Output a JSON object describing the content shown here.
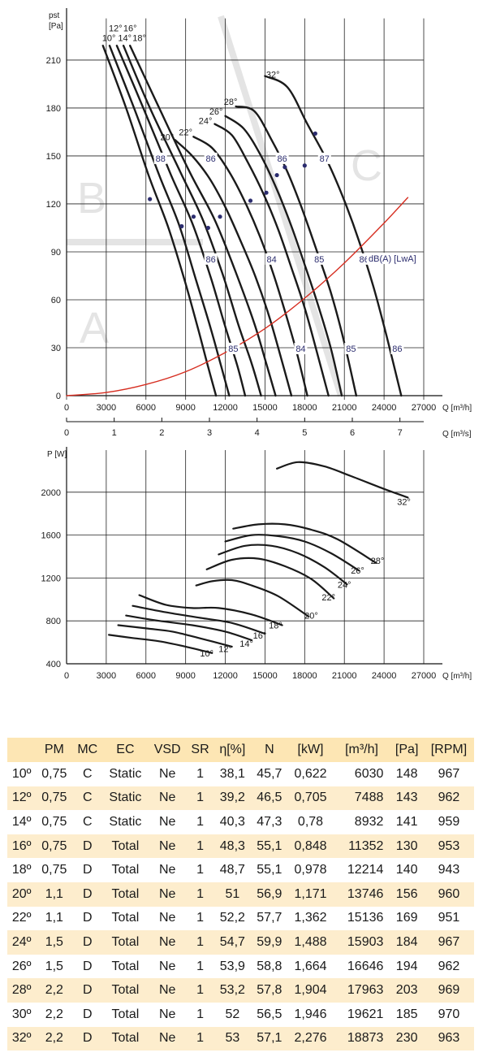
{
  "chart_data": [
    {
      "type": "line",
      "title": "",
      "ylabel": "pst [Pa]",
      "y_unit_top": "pst",
      "y_unit_bottom": "[Pa]",
      "xlabel": "Q [m³/h]",
      "xlabel2": "Q [m³/s]",
      "xlim": [
        0,
        27000
      ],
      "ylim": [
        0,
        230
      ],
      "x_ticks": [
        0,
        3000,
        6000,
        9000,
        12000,
        15000,
        18000,
        21000,
        24000,
        27000
      ],
      "y_ticks": [
        0,
        30,
        60,
        90,
        120,
        150,
        180,
        210
      ],
      "x2_ticks": [
        0,
        1,
        2,
        3,
        4,
        5,
        6,
        7
      ],
      "grid": true,
      "zones": [
        "A",
        "B",
        "C"
      ],
      "series": [
        {
          "name": "10°",
          "x": [
            2750,
            4500,
            6200,
            7700,
            9000,
            10000,
            10700,
            11300
          ],
          "y": [
            219,
            180,
            138,
            105,
            70,
            40,
            18,
            0
          ]
        },
        {
          "name": "12°",
          "x": [
            3250,
            5100,
            7000,
            8500,
            9800,
            10900,
            11700,
            12300
          ],
          "y": [
            219,
            180,
            138,
            107,
            72,
            42,
            18,
            0
          ]
        },
        {
          "name": "14°",
          "x": [
            3800,
            5800,
            7900,
            9500,
            10900,
            12000,
            12900,
            13500
          ],
          "y": [
            219,
            180,
            138,
            108,
            74,
            43,
            19,
            0
          ]
        },
        {
          "name": "16°",
          "x": [
            4300,
            6300,
            8600,
            10300,
            11800,
            13000,
            14000,
            14700
          ],
          "y": [
            219,
            180,
            140,
            110,
            76,
            44,
            20,
            0
          ]
        },
        {
          "name": "18°",
          "x": [
            4800,
            7000,
            9300,
            11200,
            12800,
            14200,
            15100,
            15800
          ],
          "y": [
            219,
            180,
            140,
            110,
            77,
            45,
            20,
            0
          ]
        },
        {
          "name": "20°",
          "x": [
            8200,
            9500,
            10800,
            12000,
            13200,
            14300,
            15300,
            16200,
            17000
          ],
          "y": [
            160,
            150,
            136,
            118,
            96,
            74,
            50,
            24,
            0
          ]
        },
        {
          "name": "22°",
          "x": [
            9600,
            11000,
            12300,
            13500,
            14600,
            15600,
            16500,
            17400,
            18200
          ],
          "y": [
            162,
            155,
            140,
            121,
            100,
            77,
            53,
            27,
            0
          ]
        },
        {
          "name": "24°",
          "x": [
            11200,
            12500,
            13700,
            14900,
            16000,
            17000,
            18000,
            18900,
            19800
          ],
          "y": [
            170,
            163,
            146,
            126,
            104,
            80,
            55,
            28,
            0
          ]
        },
        {
          "name": "26°",
          "x": [
            12000,
            13400,
            14700,
            15900,
            17000,
            18000,
            19000,
            20000,
            20800
          ],
          "y": [
            175,
            167,
            150,
            129,
            106,
            82,
            57,
            29,
            0
          ]
        },
        {
          "name": "28°",
          "x": [
            12800,
            14200,
            15500,
            16700,
            17800,
            18900,
            20000,
            21000,
            21900
          ],
          "y": [
            181,
            178,
            160,
            140,
            117,
            91,
            64,
            33,
            0
          ]
        },
        {
          "name": "32°",
          "x": [
            15000,
            16700,
            18200,
            19700,
            21000,
            22100,
            23200,
            24200,
            25300
          ],
          "y": [
            200,
            193,
            170,
            147,
            122,
            97,
            68,
            37,
            0
          ]
        },
        {
          "name": "system",
          "color": "#d62d20",
          "x": [
            0,
            3000,
            6000,
            9000,
            12000,
            15000,
            18000,
            21000,
            24000,
            25800
          ],
          "y": [
            0,
            2,
            7,
            15,
            27,
            42,
            61,
            83,
            108,
            124
          ]
        }
      ],
      "markers_x": [
        6300,
        8700,
        9600,
        10700,
        11600,
        13900,
        15100,
        15900,
        16500,
        18000,
        18800
      ],
      "markers_y": [
        123,
        106,
        112,
        105,
        112,
        122,
        127,
        138,
        143,
        144,
        164
      ],
      "dB_labels": [
        {
          "text": "88",
          "x": 7100,
          "y": 148
        },
        {
          "text": "86",
          "x": 10900,
          "y": 148
        },
        {
          "text": "86",
          "x": 16300,
          "y": 148
        },
        {
          "text": "87",
          "x": 19500,
          "y": 148
        },
        {
          "text": "86",
          "x": 10900,
          "y": 85
        },
        {
          "text": "84",
          "x": 15500,
          "y": 85
        },
        {
          "text": "85",
          "x": 19100,
          "y": 85
        },
        {
          "text": "86",
          "x": 22500,
          "y": 85
        },
        {
          "text": "85",
          "x": 12600,
          "y": 29
        },
        {
          "text": "84",
          "x": 17700,
          "y": 29
        },
        {
          "text": "85",
          "x": 21500,
          "y": 29
        },
        {
          "text": "86",
          "x": 25000,
          "y": 29
        }
      ],
      "unit_note": "dB(A) [LwA]",
      "curve_labels": [
        {
          "text": "10°",
          "x": 3200,
          "y": 222
        },
        {
          "text": "12°",
          "x": 3700,
          "y": 228
        },
        {
          "text": "14°",
          "x": 4400,
          "y": 222
        },
        {
          "text": "16°",
          "x": 4800,
          "y": 228
        },
        {
          "text": "18°",
          "x": 5500,
          "y": 222
        },
        {
          "text": "20°",
          "x": 7600,
          "y": 160
        },
        {
          "text": "22°",
          "x": 9000,
          "y": 163
        },
        {
          "text": "24°",
          "x": 10500,
          "y": 170
        },
        {
          "text": "26°",
          "x": 11300,
          "y": 176
        },
        {
          "text": "28°",
          "x": 12400,
          "y": 182
        },
        {
          "text": "32°",
          "x": 15600,
          "y": 199
        }
      ]
    },
    {
      "type": "line",
      "title": "",
      "ylabel": "P [W]",
      "xlabel": "Q [m³/h]",
      "xlim": [
        0,
        27000
      ],
      "ylim": [
        400,
        2200
      ],
      "x_ticks": [
        0,
        3000,
        6000,
        9000,
        12000,
        15000,
        18000,
        21000,
        24000,
        27000
      ],
      "y_ticks": [
        400,
        800,
        1200,
        1600,
        2000
      ],
      "grid": true,
      "series": [
        {
          "name": "10°",
          "x": [
            3200,
            5000,
            7000,
            9000,
            11000
          ],
          "y": [
            670,
            640,
            610,
            560,
            500
          ]
        },
        {
          "name": "12°",
          "x": [
            3900,
            6000,
            8000,
            10000,
            12500
          ],
          "y": [
            760,
            730,
            700,
            640,
            560
          ]
        },
        {
          "name": "14°",
          "x": [
            4500,
            7000,
            9500,
            12000,
            14000
          ],
          "y": [
            850,
            800,
            760,
            700,
            620
          ]
        },
        {
          "name": "16°",
          "x": [
            5000,
            7500,
            10000,
            12500,
            15000
          ],
          "y": [
            940,
            880,
            830,
            780,
            680
          ]
        },
        {
          "name": "18°",
          "x": [
            5500,
            7500,
            9500,
            11500,
            14000,
            16300
          ],
          "y": [
            1040,
            950,
            920,
            920,
            860,
            760
          ]
        },
        {
          "name": "20°",
          "x": [
            9800,
            11000,
            12500,
            14000,
            16000,
            18300
          ],
          "y": [
            1130,
            1170,
            1180,
            1130,
            1030,
            840
          ]
        },
        {
          "name": "22°",
          "x": [
            10600,
            12500,
            14500,
            16500,
            18500,
            20200
          ],
          "y": [
            1280,
            1370,
            1380,
            1310,
            1190,
            1010
          ]
        },
        {
          "name": "24°",
          "x": [
            11500,
            13500,
            15500,
            17500,
            19500,
            21200
          ],
          "y": [
            1420,
            1500,
            1500,
            1430,
            1300,
            1140
          ]
        },
        {
          "name": "26°",
          "x": [
            12000,
            14000,
            16000,
            18000,
            20000,
            22100
          ],
          "y": [
            1540,
            1600,
            1590,
            1540,
            1430,
            1270
          ]
        },
        {
          "name": "28°",
          "x": [
            12600,
            14500,
            16500,
            18500,
            20500,
            23400
          ],
          "y": [
            1660,
            1700,
            1700,
            1650,
            1560,
            1340
          ]
        },
        {
          "name": "32°",
          "x": [
            15900,
            17500,
            19500,
            21500,
            24000,
            25800
          ],
          "y": [
            2220,
            2280,
            2240,
            2150,
            2030,
            1950
          ]
        }
      ],
      "curve_labels": [
        {
          "text": "10°",
          "x": 10600,
          "y": 470
        },
        {
          "text": "12°",
          "x": 12000,
          "y": 510
        },
        {
          "text": "14°",
          "x": 13600,
          "y": 560
        },
        {
          "text": "16°",
          "x": 14600,
          "y": 635
        },
        {
          "text": "18°",
          "x": 15800,
          "y": 730
        },
        {
          "text": "20°",
          "x": 18500,
          "y": 820
        },
        {
          "text": "22°",
          "x": 19800,
          "y": 990
        },
        {
          "text": "24°",
          "x": 21000,
          "y": 1110
        },
        {
          "text": "26°",
          "x": 22000,
          "y": 1240
        },
        {
          "text": "28°",
          "x": 23500,
          "y": 1330
        },
        {
          "text": "32°",
          "x": 25500,
          "y": 1880
        }
      ]
    },
    {
      "type": "table",
      "columns": [
        "",
        "PM",
        "MC",
        "EC",
        "VSD",
        "SR",
        "η[%]",
        "N",
        "[kW]",
        "[m³/h]",
        "[Pa]",
        "[RPM]"
      ],
      "rows": [
        [
          "10º",
          "0,75",
          "C",
          "Static",
          "Ne",
          "1",
          "38,1",
          "45,7",
          "0,622",
          "6030",
          "148",
          "967"
        ],
        [
          "12º",
          "0,75",
          "C",
          "Static",
          "Ne",
          "1",
          "39,2",
          "46,5",
          "0,705",
          "7488",
          "143",
          "962"
        ],
        [
          "14º",
          "0,75",
          "C",
          "Static",
          "Ne",
          "1",
          "40,3",
          "47,3",
          "0,78",
          "8932",
          "141",
          "959"
        ],
        [
          "16º",
          "0,75",
          "D",
          "Total",
          "Ne",
          "1",
          "48,3",
          "55,1",
          "0,848",
          "11352",
          "130",
          "953"
        ],
        [
          "18º",
          "0,75",
          "D",
          "Total",
          "Ne",
          "1",
          "48,7",
          "55,1",
          "0,978",
          "12214",
          "140",
          "943"
        ],
        [
          "20º",
          "1,1",
          "D",
          "Total",
          "Ne",
          "1",
          "51",
          "56,9",
          "1,171",
          "13746",
          "156",
          "960"
        ],
        [
          "22º",
          "1,1",
          "D",
          "Total",
          "Ne",
          "1",
          "52,2",
          "57,7",
          "1,362",
          "15136",
          "169",
          "951"
        ],
        [
          "24º",
          "1,5",
          "D",
          "Total",
          "Ne",
          "1",
          "54,7",
          "59,9",
          "1,488",
          "15903",
          "184",
          "967"
        ],
        [
          "26º",
          "1,5",
          "D",
          "Total",
          "Ne",
          "1",
          "53,9",
          "58,8",
          "1,664",
          "16646",
          "194",
          "962"
        ],
        [
          "28º",
          "2,2",
          "D",
          "Total",
          "Ne",
          "1",
          "53,2",
          "57,8",
          "1,904",
          "17963",
          "203",
          "969"
        ],
        [
          "30º",
          "2,2",
          "D",
          "Total",
          "Ne",
          "1",
          "52",
          "56,5",
          "1,946",
          "19621",
          "185",
          "970"
        ],
        [
          "32º",
          "2,2",
          "D",
          "Total",
          "Ne",
          "1",
          "53",
          "57,1",
          "2,276",
          "18873",
          "230",
          "963"
        ]
      ]
    }
  ],
  "colors": {
    "curve": "#1a1a1a",
    "system_curve": "#d62d20",
    "db_label": "#2b2c6e",
    "zone": "#e4e4e4",
    "table_header": "#fde6b4",
    "table_alt_row": "#fdedcd"
  }
}
